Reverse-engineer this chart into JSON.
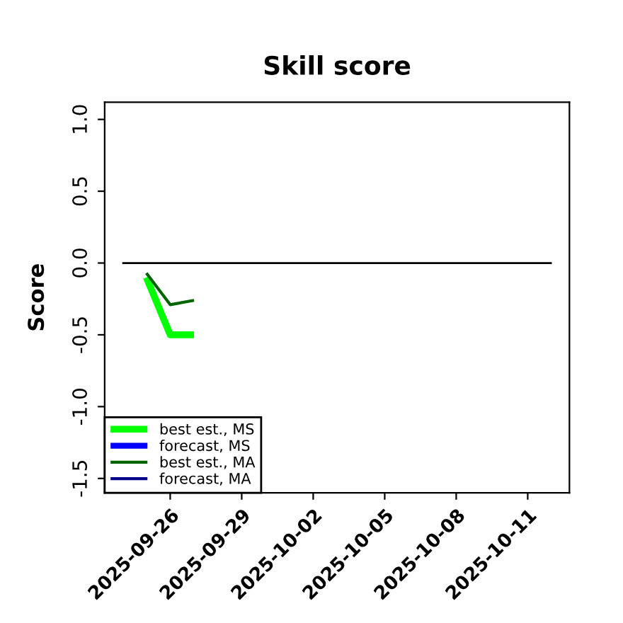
{
  "chart_data": {
    "type": "line",
    "title": "Skill score",
    "ylabel": "Score",
    "x": [
      "2025-09-25",
      "2025-09-26",
      "2025-09-27"
    ],
    "series": [
      {
        "name": "best est., MS",
        "color": "#00ff00",
        "values": [
          -0.1,
          -0.5,
          -0.5
        ]
      },
      {
        "name": "forecast, MS",
        "color": "#0000ff",
        "values": [
          null,
          null,
          null
        ]
      },
      {
        "name": "best est., MA",
        "color": "#006400",
        "values": [
          -0.07,
          -0.29,
          -0.26
        ]
      },
      {
        "name": "forecast, MA",
        "color": "#00008b",
        "values": [
          null,
          null,
          null
        ]
      }
    ],
    "xlim": [
      "2025-09-23T06:00",
      "2025-10-12T18:00"
    ],
    "xticks": [
      "2025-09-26",
      "2025-09-29",
      "2025-10-02",
      "2025-10-05",
      "2025-10-08",
      "2025-10-11"
    ],
    "ylim": [
      -1.6,
      1.12
    ],
    "yticks": [
      {
        "value": 1.0,
        "label": "1.0"
      },
      {
        "value": 0.5,
        "label": "0.5"
      },
      {
        "value": 0.0,
        "label": "0.0"
      },
      {
        "value": -0.5,
        "label": "-0.5"
      },
      {
        "value": -1.0,
        "label": "-1.0"
      },
      {
        "value": -1.5,
        "label": "-1.5"
      }
    ],
    "ref_lines": [
      {
        "axis": "y",
        "value": 0,
        "color": "#000000"
      }
    ],
    "grid": false,
    "legend": "bottom left",
    "marker": "none",
    "line_style": "solid"
  }
}
